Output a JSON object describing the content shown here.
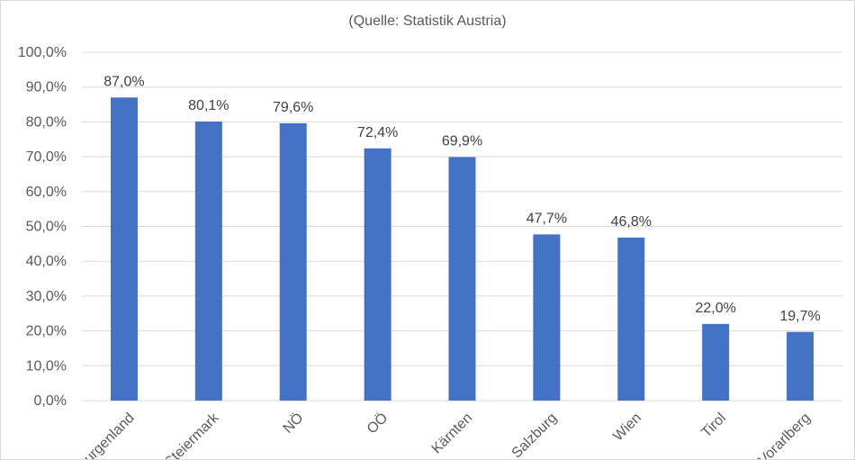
{
  "chart_data": {
    "type": "bar",
    "title": "",
    "subtitle": "(Quelle: Statistik Austria)",
    "categories": [
      "Burgenland",
      "Steiermark",
      "NÖ",
      "OÖ",
      "Kärnten",
      "Salzburg",
      "Wien",
      "Tirol",
      "Vorarlberg"
    ],
    "values": [
      87.0,
      80.1,
      79.6,
      72.4,
      69.9,
      47.7,
      46.8,
      22.0,
      19.7
    ],
    "data_labels": [
      "87,0%",
      "80,1%",
      "79,6%",
      "72,4%",
      "69,9%",
      "47,7%",
      "46,8%",
      "22,0%",
      "19,7%"
    ],
    "y_ticks": [
      0,
      10,
      20,
      30,
      40,
      50,
      60,
      70,
      80,
      90,
      100
    ],
    "y_tick_labels": [
      "0,0%",
      "10,0%",
      "20,0%",
      "30,0%",
      "40,0%",
      "50,0%",
      "60,0%",
      "70,0%",
      "80,0%",
      "90,0%",
      "100,0%"
    ],
    "xlabel": "",
    "ylabel": "",
    "ylim": [
      0,
      100
    ],
    "grid": true,
    "legend": "none",
    "bar_color": "#4472C4"
  }
}
